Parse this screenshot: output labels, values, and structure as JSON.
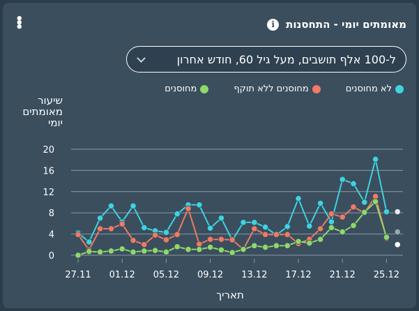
{
  "header": {
    "title": "מאומתים יומי - התחסנות"
  },
  "filter": {
    "selected": "ל-100 אלף תושבים, מעל גיל 60, חודש אחרון"
  },
  "colors": {
    "unvaccinated": "#3ed3e0",
    "expired": "#f07a62",
    "vaccinated": "#8fd86a",
    "grid": "#8a9aa6"
  },
  "chart_data": {
    "type": "line",
    "ylabel": "שיעור מאומתים יומי",
    "xlabel": "תאריך",
    "ylim": [
      0,
      20
    ],
    "yticks": [
      0,
      4,
      8,
      12,
      16,
      20
    ],
    "xtick_labels": [
      "27.11",
      "01.12",
      "05.12",
      "09.12",
      "13.12",
      "17.12",
      "21.12",
      "25.12"
    ],
    "series": [
      {
        "name": "לא מחוסנים",
        "key": "unvaccinated",
        "values": [
          4.2,
          2.5,
          7.0,
          9.3,
          6.3,
          9.3,
          5.2,
          4.6,
          4.3,
          7.8,
          9.5,
          9.5,
          5.1,
          7.0,
          2.8,
          6.2,
          6.2,
          5.3,
          3.8,
          5.4,
          10.7,
          5.5,
          9.8,
          6.3,
          14.3,
          13.5,
          10.0,
          18.1,
          8.2,
          8.2
        ]
      },
      {
        "name": "מחוסנים ללא תוקף",
        "key": "expired",
        "values": [
          3.9,
          1.0,
          5.0,
          5.0,
          5.9,
          2.8,
          2.0,
          3.8,
          2.9,
          3.9,
          8.8,
          2.1,
          3.0,
          3.0,
          2.9,
          1.1,
          5.0,
          3.9,
          3.9,
          3.9,
          2.2,
          3.0,
          5.0,
          7.8,
          7.2,
          9.1,
          8.0,
          11.1,
          3.2,
          2.0
        ]
      },
      {
        "name": "מחוסנים",
        "key": "vaccinated",
        "values": [
          0.0,
          0.7,
          0.6,
          0.8,
          1.2,
          0.6,
          0.8,
          0.9,
          0.6,
          1.6,
          1.1,
          1.1,
          1.5,
          1.0,
          0.5,
          1.1,
          1.8,
          1.5,
          1.8,
          1.8,
          2.6,
          2.3,
          3.0,
          5.2,
          4.4,
          5.6,
          8.1,
          10.1,
          3.4,
          4.4
        ]
      }
    ]
  }
}
